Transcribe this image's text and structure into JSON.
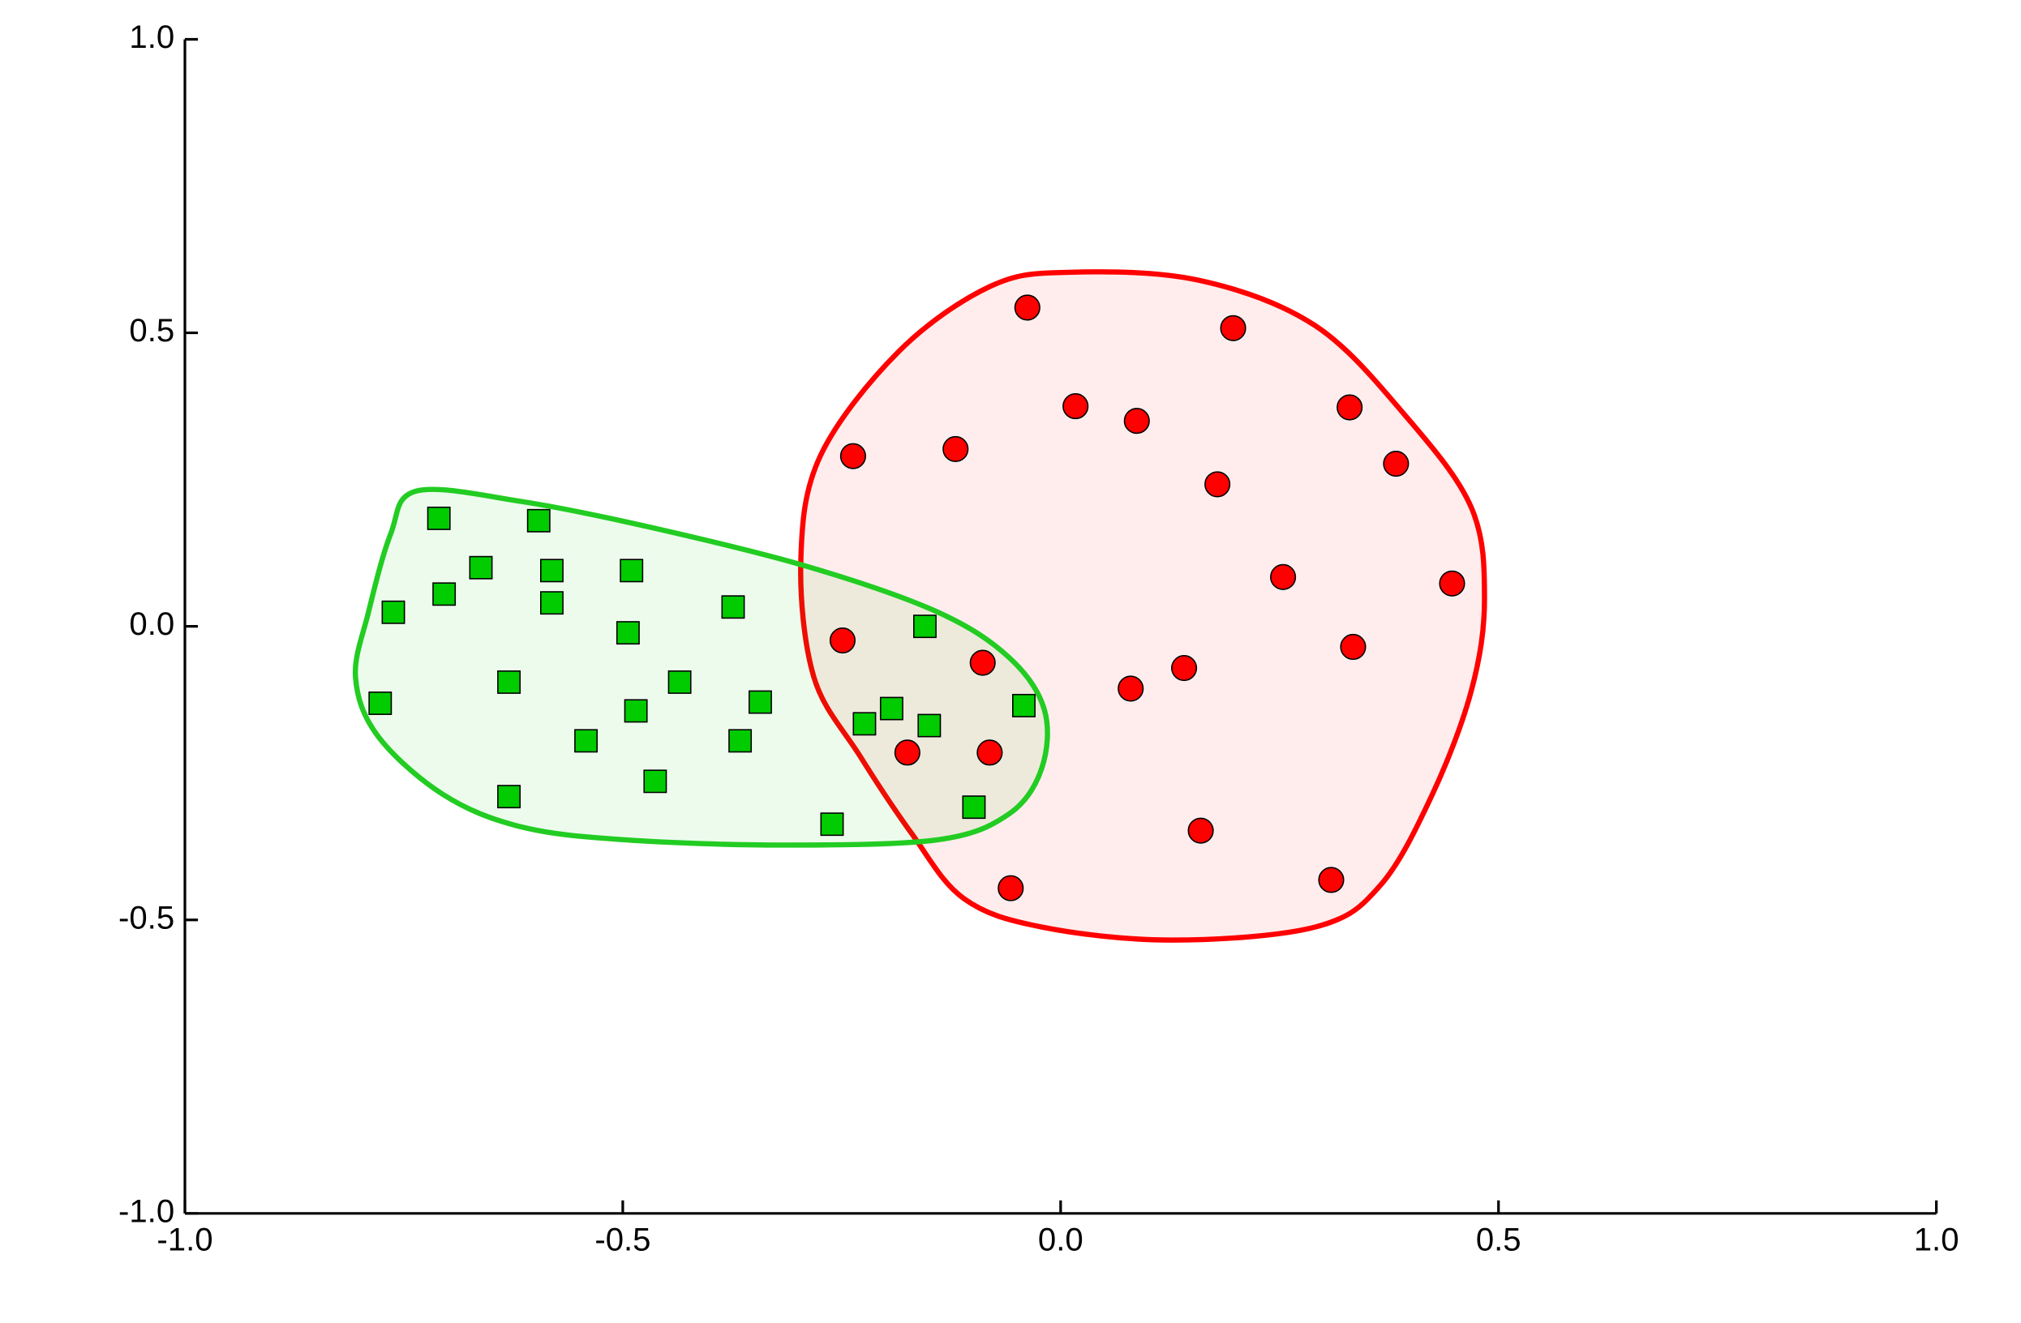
{
  "chart_data": {
    "type": "scatter",
    "xlim": [
      -1,
      1
    ],
    "ylim": [
      -1,
      1
    ],
    "xticks": [
      {
        "value": -1,
        "label": "-1.0"
      },
      -0.5,
      {
        "value": 0,
        "label": "0.0"
      },
      0.5,
      {
        "value": 1,
        "label": "1.0"
      }
    ],
    "yticks": [
      {
        "value": -1,
        "label": "-1.0"
      },
      -0.5,
      {
        "value": 0,
        "label": "0.0"
      },
      0.5,
      {
        "value": 1,
        "label": "1.0"
      }
    ],
    "series": [
      {
        "color": "#00cc00",
        "marker": "square",
        "x": [
          -0.71,
          -0.596,
          -0.662,
          -0.581,
          -0.49,
          -0.762,
          -0.704,
          -0.581,
          -0.374,
          -0.494,
          -0.155,
          -0.63,
          -0.435,
          -0.777,
          -0.485,
          -0.343,
          -0.042,
          -0.193,
          -0.224,
          -0.15,
          -0.542,
          -0.366,
          -0.463,
          -0.63,
          -0.099,
          -0.261
        ],
        "values": [
          0.184,
          0.18,
          0.1,
          0.095,
          0.095,
          0.024,
          0.055,
          0.04,
          0.033,
          -0.011,
          0,
          -0.095,
          -0.095,
          -0.131,
          -0.144,
          -0.129,
          -0.135,
          -0.14,
          -0.166,
          -0.169,
          -0.195,
          -0.195,
          -0.264,
          -0.29,
          -0.308,
          -0.337
        ]
      },
      {
        "color": "#ff0000",
        "marker": "circle",
        "x": [
          -0.038,
          0.197,
          0.017,
          0.087,
          0.33,
          -0.237,
          -0.12,
          0.383,
          0.179,
          0.254,
          0.447,
          -0.249,
          0.334,
          -0.089,
          0.141,
          0.08,
          -0.175,
          -0.081,
          0.16,
          0.309,
          -0.057
        ],
        "values": [
          0.543,
          0.508,
          0.375,
          0.35,
          0.373,
          0.29,
          0.302,
          0.277,
          0.242,
          0.084,
          0.073,
          -0.024,
          -0.035,
          -0.062,
          -0.071,
          -0.106,
          -0.215,
          -0.215,
          -0.348,
          -0.432,
          -0.446
        ]
      }
    ]
  }
}
